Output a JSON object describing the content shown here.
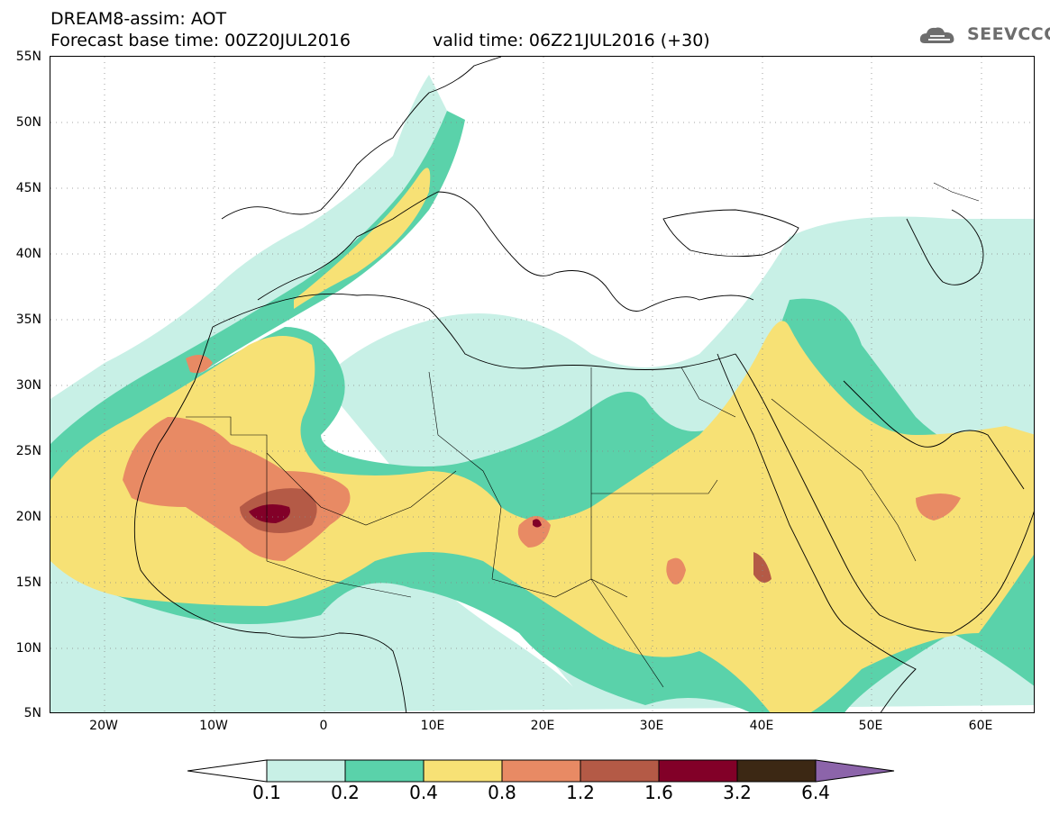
{
  "header": {
    "title": "DREAM8-assim: AOT",
    "base_time": "Forecast base time: 00Z20JUL2016",
    "valid_time": "valid time: 06Z21JUL2016 (+30)"
  },
  "logo": {
    "text": "SEEVCCC",
    "icon": "cloud-icon",
    "color": "#6d6d6d"
  },
  "axes": {
    "lat_labels": [
      "55N",
      "50N",
      "45N",
      "40N",
      "35N",
      "30N",
      "25N",
      "20N",
      "15N",
      "10N",
      "5N"
    ],
    "lon_labels": [
      "20W",
      "10W",
      "0",
      "10E",
      "20E",
      "30E",
      "40E",
      "50E",
      "60E"
    ]
  },
  "colorbar": {
    "labels": [
      "0.1",
      "0.2",
      "0.4",
      "0.8",
      "1.2",
      "1.6",
      "3.2",
      "6.4"
    ],
    "colors": [
      "#ffffff",
      "#c8f0e6",
      "#5ad2aa",
      "#f7e175",
      "#e88a64",
      "#b45a46",
      "#820028",
      "#3c2814",
      "#8c64aa"
    ]
  }
}
